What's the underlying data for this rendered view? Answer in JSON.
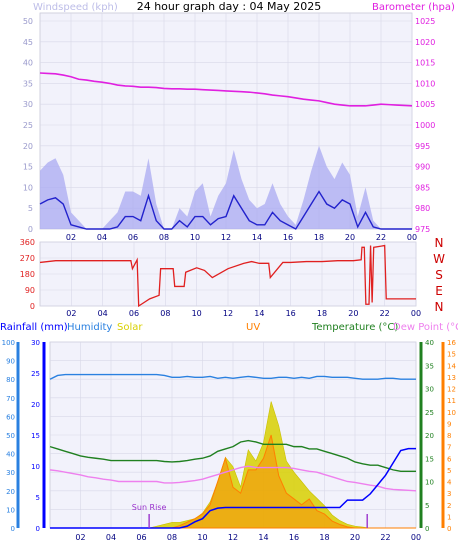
{
  "title": "24 hour graph day : 04 May 2025",
  "colors": {
    "windspeed": "#2222cc",
    "gust": "#a9a9f2",
    "barometer": "#e020e0",
    "direction": "#e02020",
    "dir_labels": "#cc0000",
    "rainfall": "#0000ff",
    "humidity": "#2a80e0",
    "solar": "#d8d000",
    "uv": "#ff7f00",
    "temperature": "#208020",
    "dewpoint": "#ee80ee",
    "sunrise": "#9932cc",
    "plot_bg": "#f2f2fb",
    "grid": "#d8d8e8"
  },
  "chart_data": [
    {
      "type": "line",
      "name": "wind-barometer",
      "ylabel_left": "Windspeed (kph)",
      "ylabel_right": "Barometer (hpa)",
      "xticks": [
        "02",
        "04",
        "06",
        "08",
        "10",
        "12",
        "14",
        "16",
        "18",
        "20",
        "22",
        "00"
      ],
      "yticks_left": [
        "0",
        "5",
        "10",
        "15",
        "20",
        "25",
        "30",
        "35",
        "40",
        "45",
        "50"
      ],
      "yticks_right": [
        "975",
        "980",
        "985",
        "990",
        "995",
        "1000",
        "1005",
        "1010",
        "1015",
        "1020",
        "1025"
      ],
      "ylim_left": [
        0,
        50
      ],
      "ylim_right": [
        975,
        1025
      ],
      "x_hours": [
        0,
        0.5,
        1,
        1.5,
        2,
        2.5,
        3,
        3.5,
        4,
        4.5,
        5,
        5.5,
        6,
        6.5,
        7,
        7.5,
        8,
        8.5,
        9,
        9.5,
        10,
        10.5,
        11,
        11.5,
        12,
        12.5,
        13,
        13.5,
        14,
        14.5,
        15,
        15.5,
        16,
        16.5,
        17,
        17.5,
        18,
        18.5,
        19,
        19.5,
        20,
        20.5,
        21,
        21.5,
        22,
        22.5,
        23,
        23.5,
        24
      ],
      "series": [
        {
          "name": "Windspeed (kph)",
          "axis": "left",
          "values": [
            6,
            7,
            7.5,
            6,
            1,
            0.5,
            0,
            0,
            0,
            0,
            0.5,
            3,
            3,
            2,
            8,
            2,
            0,
            0,
            2,
            0.5,
            3,
            3,
            1,
            2.5,
            3,
            8,
            5,
            2,
            1,
            1,
            4,
            2,
            1,
            0,
            3,
            6,
            9,
            6,
            5,
            7,
            6,
            0.5,
            4,
            0.5,
            0,
            0,
            0,
            0,
            0
          ]
        },
        {
          "name": "Gust",
          "axis": "left",
          "values": [
            14,
            16,
            17,
            13,
            4,
            2,
            0,
            0,
            0,
            2,
            4,
            9,
            9,
            8,
            17,
            6,
            0,
            0,
            5,
            3,
            9,
            11,
            3,
            8,
            11,
            19,
            12,
            7,
            5,
            6,
            11,
            6,
            3,
            1,
            7,
            14,
            20,
            15,
            12,
            16,
            13,
            3,
            10,
            2,
            0,
            0,
            0,
            0,
            0
          ]
        },
        {
          "name": "Barometer (hpa)",
          "axis": "right",
          "values": [
            1012.5,
            1012.4,
            1012.3,
            1012,
            1011.6,
            1011,
            1010.8,
            1010.5,
            1010.3,
            1010,
            1009.6,
            1009.4,
            1009.3,
            1009.1,
            1009.1,
            1009,
            1008.8,
            1008.7,
            1008.7,
            1008.6,
            1008.6,
            1008.5,
            1008.4,
            1008.3,
            1008.2,
            1008.1,
            1008,
            1007.9,
            1007.7,
            1007.5,
            1007.2,
            1007,
            1006.8,
            1006.5,
            1006.2,
            1006,
            1005.8,
            1005.4,
            1005,
            1004.8,
            1004.6,
            1004.6,
            1004.6,
            1004.8,
            1005,
            1004.9,
            1004.8,
            1004.7,
            1004.6
          ]
        }
      ]
    },
    {
      "type": "line",
      "name": "wind-direction",
      "yticks": [
        "0",
        "90",
        "180",
        "270",
        "360"
      ],
      "ylim": [
        0,
        360
      ],
      "direction_labels": [
        "N",
        "W",
        "S",
        "E",
        "N"
      ],
      "xticks": [
        "02",
        "04",
        "06",
        "08",
        "10",
        "12",
        "14",
        "16",
        "18",
        "20",
        "22",
        "00"
      ],
      "x_hours": [
        0,
        1,
        2,
        3,
        4,
        5,
        5.8,
        5.9,
        6.2,
        6.3,
        7,
        7.6,
        7.7,
        8.5,
        8.6,
        9.2,
        9.3,
        10,
        10.5,
        11,
        12,
        13,
        13.5,
        14,
        14.6,
        14.7,
        15.5,
        16,
        17,
        18,
        19,
        20,
        20.5,
        20.55,
        20.7,
        20.8,
        21,
        21.1,
        21.2,
        21.3,
        22,
        22.1,
        23,
        24
      ],
      "values": [
        245,
        255,
        255,
        255,
        255,
        255,
        255,
        210,
        260,
        0,
        40,
        60,
        210,
        210,
        110,
        110,
        190,
        215,
        200,
        160,
        210,
        240,
        250,
        240,
        240,
        160,
        245,
        245,
        250,
        250,
        255,
        255,
        260,
        330,
        330,
        10,
        10,
        340,
        20,
        330,
        340,
        40,
        40,
        40
      ]
    },
    {
      "type": "line",
      "name": "rain-humidity-solar-uv-temp-dew",
      "labels": {
        "rainfall": "Rainfall (mm)",
        "humidity": "Humidity",
        "solar": "Solar",
        "uv": "UV",
        "temperature": "Temperature (°C)",
        "dewpoint": "Dew Point (°C)",
        "sunrise": "Sun Rise"
      },
      "yticks_left_humidity": [
        "0",
        "10",
        "20",
        "30",
        "40",
        "50",
        "60",
        "70",
        "80",
        "90",
        "100"
      ],
      "yticks_left_rain": [
        "0",
        "5",
        "10",
        "15",
        "20",
        "25",
        "30"
      ],
      "yticks_right_temp": [
        "0",
        "5",
        "10",
        "15",
        "20",
        "25",
        "30",
        "35",
        "40"
      ],
      "yticks_right_uv": [
        "0",
        "1",
        "2",
        "3",
        "4",
        "5",
        "6",
        "7",
        "8",
        "9",
        "10",
        "11",
        "12",
        "13",
        "14",
        "15",
        "16"
      ],
      "ylim_humidity": [
        0,
        100
      ],
      "ylim_rain": [
        0,
        30
      ],
      "ylim_temp": [
        0,
        40
      ],
      "ylim_uv": [
        0,
        16
      ],
      "xticks": [
        "02",
        "04",
        "06",
        "08",
        "10",
        "12",
        "14",
        "16",
        "18",
        "20",
        "22",
        "00"
      ],
      "sunrise_hour": 6.5,
      "sunset_hour": 20.8,
      "x_hours": [
        0,
        0.5,
        1,
        1.5,
        2,
        2.5,
        3,
        3.5,
        4,
        4.5,
        5,
        5.5,
        6,
        6.5,
        7,
        7.5,
        8,
        8.5,
        9,
        9.5,
        10,
        10.5,
        11,
        11.5,
        12,
        12.5,
        13,
        13.5,
        14,
        14.5,
        15,
        15.5,
        16,
        16.5,
        17,
        17.5,
        18,
        18.5,
        19,
        19.5,
        20,
        20.5,
        21,
        21.5,
        22,
        22.5,
        23,
        23.5,
        24
      ],
      "series": [
        {
          "name": "Humidity",
          "axis": "humidity",
          "values": [
            80,
            82,
            82.5,
            82.5,
            82.5,
            82.5,
            82.5,
            82.5,
            82.5,
            82.5,
            82.5,
            82.5,
            82.5,
            82.5,
            82.5,
            82,
            81,
            81,
            81.5,
            81,
            81,
            81.5,
            80.5,
            81,
            80.5,
            81,
            81.5,
            81,
            80.5,
            80.5,
            81,
            81,
            80.5,
            81,
            80.5,
            81.5,
            81.5,
            81,
            81,
            81,
            80.5,
            80,
            80,
            80,
            80.5,
            80.5,
            80,
            80,
            80
          ]
        },
        {
          "name": "Temperature (°C)",
          "axis": "temp",
          "values": [
            17.5,
            17,
            16.5,
            16,
            15.5,
            15.2,
            15,
            14.8,
            14.5,
            14.5,
            14.5,
            14.5,
            14.5,
            14.5,
            14.5,
            14.3,
            14.2,
            14.3,
            14.5,
            14.8,
            15,
            15.5,
            16.5,
            17,
            17.5,
            18.5,
            18.8,
            18.5,
            18,
            18,
            18,
            18,
            17.5,
            17.5,
            17,
            17,
            16.5,
            16,
            15.5,
            15,
            14.2,
            13.8,
            13.5,
            13.5,
            13,
            12.5,
            12.2,
            12.2,
            12.2
          ]
        },
        {
          "name": "Dew Point (°C)",
          "axis": "temp",
          "values": [
            12.5,
            12.3,
            12,
            11.7,
            11.4,
            11,
            10.8,
            10.5,
            10.3,
            10,
            10,
            10,
            10,
            10,
            10,
            9.7,
            9.7,
            9.8,
            10,
            10.2,
            10.5,
            11,
            11.5,
            12,
            12.5,
            13,
            13.3,
            13,
            13,
            13,
            13,
            13,
            12.8,
            12.5,
            12.2,
            12,
            11.5,
            11,
            10.5,
            10,
            9.8,
            9.5,
            9.2,
            9,
            8.5,
            8.3,
            8.2,
            8.1,
            8
          ]
        },
        {
          "name": "Rainfall (mm)",
          "axis": "rain",
          "values": [
            0,
            0,
            0,
            0,
            0,
            0,
            0,
            0,
            0,
            0,
            0,
            0,
            0,
            0,
            0,
            0,
            0,
            0,
            0.3,
            1,
            1.5,
            2.8,
            3.2,
            3.3,
            3.3,
            3.3,
            3.3,
            3.3,
            3.3,
            3.3,
            3.3,
            3.3,
            3.3,
            3.3,
            3.3,
            3.3,
            3.3,
            3.3,
            3.3,
            4.5,
            4.5,
            4.5,
            5.5,
            7,
            8.5,
            10.5,
            12.5,
            12.8,
            12.8
          ]
        },
        {
          "name": "Solar",
          "axis": "humidity",
          "values": [
            0,
            0,
            0,
            0,
            0,
            0,
            0,
            0,
            0,
            0,
            0,
            0,
            0,
            0,
            1,
            2,
            3,
            3,
            4,
            5,
            8,
            14,
            25,
            38,
            33,
            22,
            42,
            36,
            46,
            68,
            55,
            36,
            30,
            25,
            20,
            16,
            12,
            7,
            4,
            2,
            1,
            0.5,
            0,
            0,
            0,
            0,
            0,
            0,
            0
          ]
        },
        {
          "name": "UV",
          "axis": "uv",
          "values": [
            0,
            0,
            0,
            0,
            0,
            0,
            0,
            0,
            0,
            0,
            0,
            0,
            0,
            0,
            0,
            0,
            0,
            0.2,
            0.5,
            0.8,
            1.2,
            2,
            4,
            6,
            3.5,
            3,
            5,
            5,
            6,
            8,
            4.5,
            3,
            2.5,
            2,
            2.5,
            1.5,
            1.2,
            0.6,
            0.3,
            0.1,
            0,
            0,
            0,
            0,
            0,
            0,
            0,
            0,
            0
          ]
        }
      ]
    }
  ]
}
